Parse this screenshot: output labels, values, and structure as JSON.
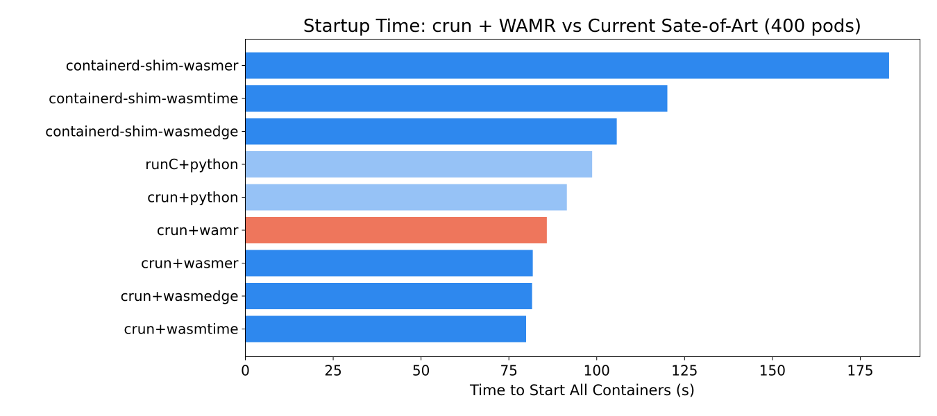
{
  "chart_data": {
    "type": "bar",
    "orientation": "horizontal",
    "title": "Startup Time: crun + WAMR vs Current Sate-of-Art (400 pods)",
    "xlabel": "Time to Start All Containers (s)",
    "ylabel": "",
    "categories": [
      "containerd-shim-wasmer",
      "containerd-shim-wasmtime",
      "containerd-shim-wasmedge",
      "runC+python",
      "crun+python",
      "crun+wamr",
      "crun+wasmer",
      "crun+wasmedge",
      "crun+wasmtime"
    ],
    "values": [
      183.2,
      120.1,
      105.7,
      98.7,
      91.5,
      85.8,
      81.8,
      81.6,
      79.9
    ],
    "colors": [
      "#2e88ee",
      "#2e88ee",
      "#2e88ee",
      "#96c2f6",
      "#96c2f6",
      "#ee765c",
      "#2e88ee",
      "#2e88ee",
      "#2e88ee"
    ],
    "xlim": [
      0,
      192
    ],
    "xticks": [
      0,
      25,
      50,
      75,
      100,
      125,
      150,
      175
    ],
    "grid": false,
    "legend": "none"
  }
}
